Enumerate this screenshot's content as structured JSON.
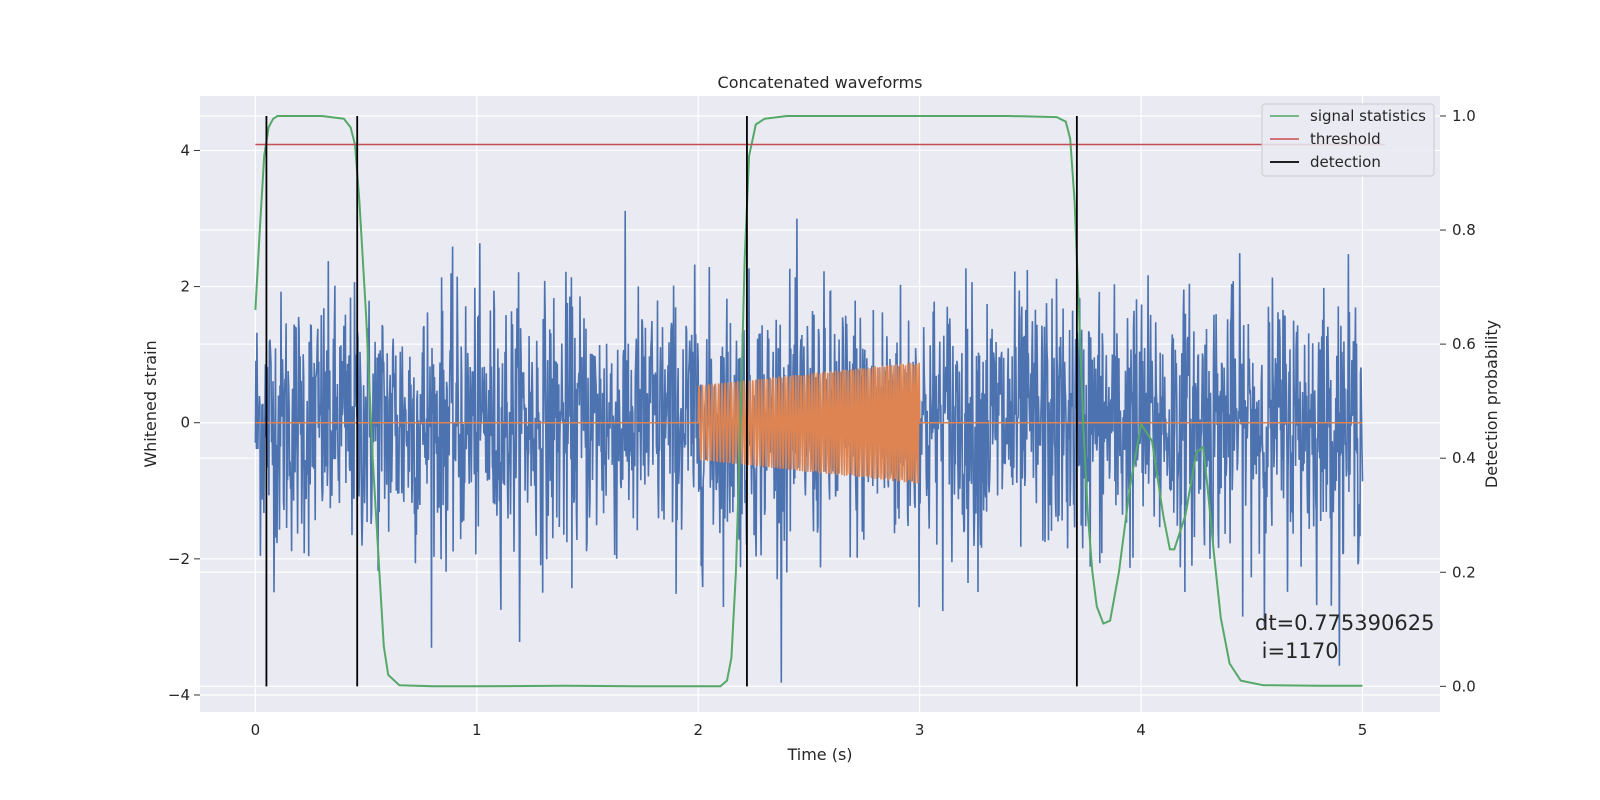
{
  "chart_data": {
    "type": "line",
    "title": "Concatenated waveforms",
    "xlabel": "Time (s)",
    "ylabel": "Whitened strain",
    "y2label": "Detection probability",
    "xlim": [
      -0.25,
      5.35
    ],
    "ylim": [
      -4.25,
      4.8
    ],
    "y2lim": [
      -0.045,
      1.035
    ],
    "x_ticks": [
      0,
      1,
      2,
      3,
      4,
      5
    ],
    "x_tick_labels": [
      "0",
      "1",
      "2",
      "3",
      "4",
      "5"
    ],
    "y_ticks": [
      -4,
      -2,
      0,
      2,
      4
    ],
    "y_tick_labels": [
      "−4",
      "−2",
      "0",
      "2",
      "4"
    ],
    "y2_ticks": [
      0.0,
      0.2,
      0.4,
      0.6,
      0.8,
      1.0
    ],
    "y2_tick_labels": [
      "0.0",
      "0.2",
      "0.4",
      "0.6",
      "0.8",
      "1.0"
    ],
    "grid": true,
    "legend_position": "top-right",
    "legend": [
      "signal statistics",
      "threshold",
      "detection"
    ],
    "annotation": "dt=0.775390625\n i=1170",
    "colors": {
      "noise": "#4c72b0",
      "template": "#dd8452",
      "signal_statistics": "#55a868",
      "threshold": "#c44e52",
      "detection": "#000000",
      "background": "#eaeaf2"
    },
    "series": [
      {
        "name": "",
        "axis": "left",
        "description_kind": "noise",
        "x_range": [
          0,
          5
        ],
        "amplitude_std": 0.95
      },
      {
        "name": "",
        "axis": "left",
        "description_kind": "chirp",
        "segments": [
          {
            "x": [
              0,
              2
            ],
            "y": [
              0,
              0
            ]
          },
          {
            "x_start": 2,
            "x_end": 3,
            "amp_start": 0.55,
            "amp_end": 0.9,
            "cycles": 66
          },
          {
            "x": [
              3,
              5
            ],
            "y": [
              0,
              0
            ]
          }
        ]
      },
      {
        "name": "signal statistics",
        "axis": "right",
        "x": [
          0.0,
          0.02,
          0.04,
          0.06,
          0.08,
          0.1,
          0.15,
          0.2,
          0.3,
          0.4,
          0.43,
          0.45,
          0.47,
          0.5,
          0.53,
          0.56,
          0.58,
          0.6,
          0.65,
          0.8,
          1.0,
          1.4,
          1.8,
          2.1,
          2.13,
          2.15,
          2.17,
          2.19,
          2.21,
          2.23,
          2.26,
          2.3,
          2.4,
          2.6,
          3.0,
          3.4,
          3.62,
          3.66,
          3.68,
          3.7,
          3.72,
          3.74,
          3.76,
          3.78,
          3.8,
          3.83,
          3.86,
          3.9,
          3.95,
          4.0,
          4.05,
          4.1,
          4.13,
          4.15,
          4.2,
          4.25,
          4.28,
          4.3,
          4.33,
          4.36,
          4.4,
          4.45,
          4.55,
          4.8,
          5.0
        ],
        "y": [
          0.66,
          0.8,
          0.93,
          0.98,
          0.995,
          1.0,
          1.0,
          1.0,
          1.0,
          0.995,
          0.98,
          0.95,
          0.85,
          0.65,
          0.4,
          0.2,
          0.07,
          0.02,
          0.002,
          0.0,
          0.0,
          0.001,
          0.0,
          0.0,
          0.01,
          0.05,
          0.2,
          0.45,
          0.75,
          0.93,
          0.985,
          0.995,
          1.0,
          1.0,
          1.0,
          1.0,
          0.998,
          0.99,
          0.96,
          0.85,
          0.65,
          0.45,
          0.3,
          0.2,
          0.14,
          0.11,
          0.115,
          0.2,
          0.35,
          0.46,
          0.43,
          0.3,
          0.24,
          0.24,
          0.3,
          0.41,
          0.42,
          0.35,
          0.23,
          0.12,
          0.04,
          0.01,
          0.002,
          0.001,
          0.001
        ]
      },
      {
        "name": "threshold",
        "axis": "right",
        "x": [
          0,
          5.1
        ],
        "y": [
          0.95,
          0.95
        ]
      }
    ],
    "detections": [
      0.05,
      0.46,
      2.22,
      3.71
    ]
  }
}
